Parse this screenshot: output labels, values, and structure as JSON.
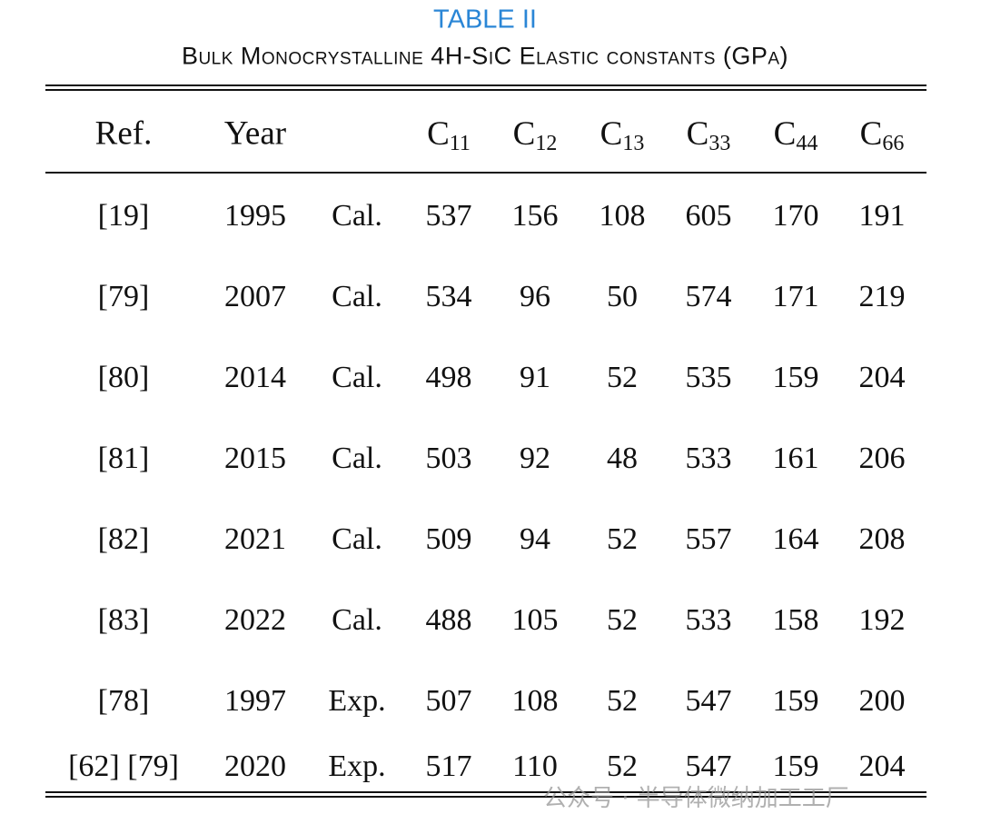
{
  "title": "TABLE II",
  "subtitle": "Bulk Monocrystalline 4H-SiC Elastic constants (GPa)",
  "header": [
    "Ref.",
    "Year"
  ],
  "constants": [
    {
      "base": "C",
      "sub": "11"
    },
    {
      "base": "C",
      "sub": "12"
    },
    {
      "base": "C",
      "sub": "13"
    },
    {
      "base": "C",
      "sub": "33"
    },
    {
      "base": "C",
      "sub": "44"
    },
    {
      "base": "C",
      "sub": "66"
    }
  ],
  "rows": [
    [
      "[19]",
      1995,
      "Cal.",
      537,
      156,
      108,
      605,
      170,
      191
    ],
    [
      "[79]",
      2007,
      "Cal.",
      534,
      96,
      50,
      574,
      171,
      219
    ],
    [
      "[80]",
      2014,
      "Cal.",
      498,
      91,
      52,
      535,
      159,
      204
    ],
    [
      "[81]",
      2015,
      "Cal.",
      503,
      92,
      48,
      533,
      161,
      206
    ],
    [
      "[82]",
      2021,
      "Cal.",
      509,
      94,
      52,
      557,
      164,
      208
    ],
    [
      "[83]",
      2022,
      "Cal.",
      488,
      105,
      52,
      533,
      158,
      192
    ],
    [
      "[78]",
      1997,
      "Exp.",
      507,
      108,
      52,
      547,
      159,
      200
    ],
    [
      "[62] [79]",
      2020,
      "Exp.",
      517,
      110,
      52,
      547,
      159,
      204
    ]
  ],
  "watermark": "公众号 · 半导体微纳加工工厂"
}
